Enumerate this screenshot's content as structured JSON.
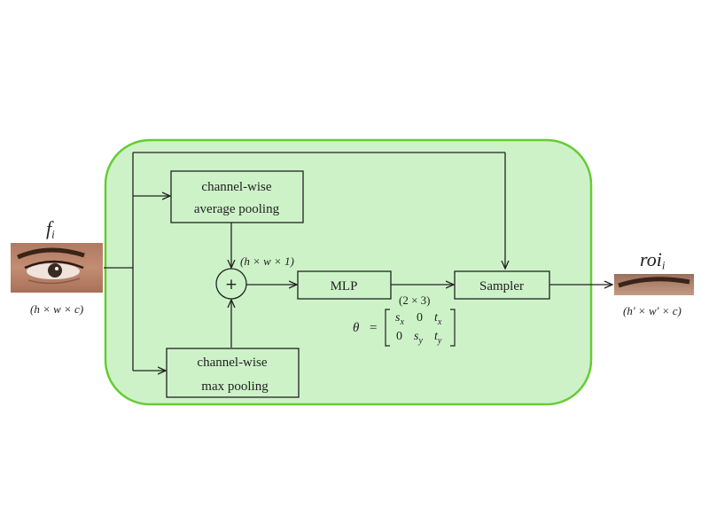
{
  "colors": {
    "container_fill": "#cdf2c8",
    "container_stroke": "#66cc33",
    "line": "#222222",
    "box_fill": "#cdf2c8"
  },
  "input": {
    "symbol": "f",
    "subscript": "i",
    "dims": "(h × w × c)",
    "image": "eye-region-photo"
  },
  "output": {
    "symbol": "roi",
    "subscript": "i",
    "dims": "(h′ × w′ × c)",
    "image": "eyebrow-region-photo"
  },
  "boxes": {
    "avg_pool": {
      "line1": "channel-wise",
      "line2": "average pooling"
    },
    "max_pool": {
      "line1": "channel-wise",
      "line2": "max pooling"
    },
    "mlp": "MLP",
    "sampler": "Sampler"
  },
  "operators": {
    "sum": "+"
  },
  "labels": {
    "pooled_dims": "(h × w × 1)",
    "mlp_out_dims": "(2 × 3)"
  },
  "theta": {
    "lhs": "θ",
    "eq": "=",
    "row1": [
      "s",
      "0",
      "t"
    ],
    "row1_subs": [
      "x",
      "",
      "x"
    ],
    "row2": [
      "0",
      "s",
      "t"
    ],
    "row2_subs": [
      "",
      "y",
      "y"
    ]
  }
}
